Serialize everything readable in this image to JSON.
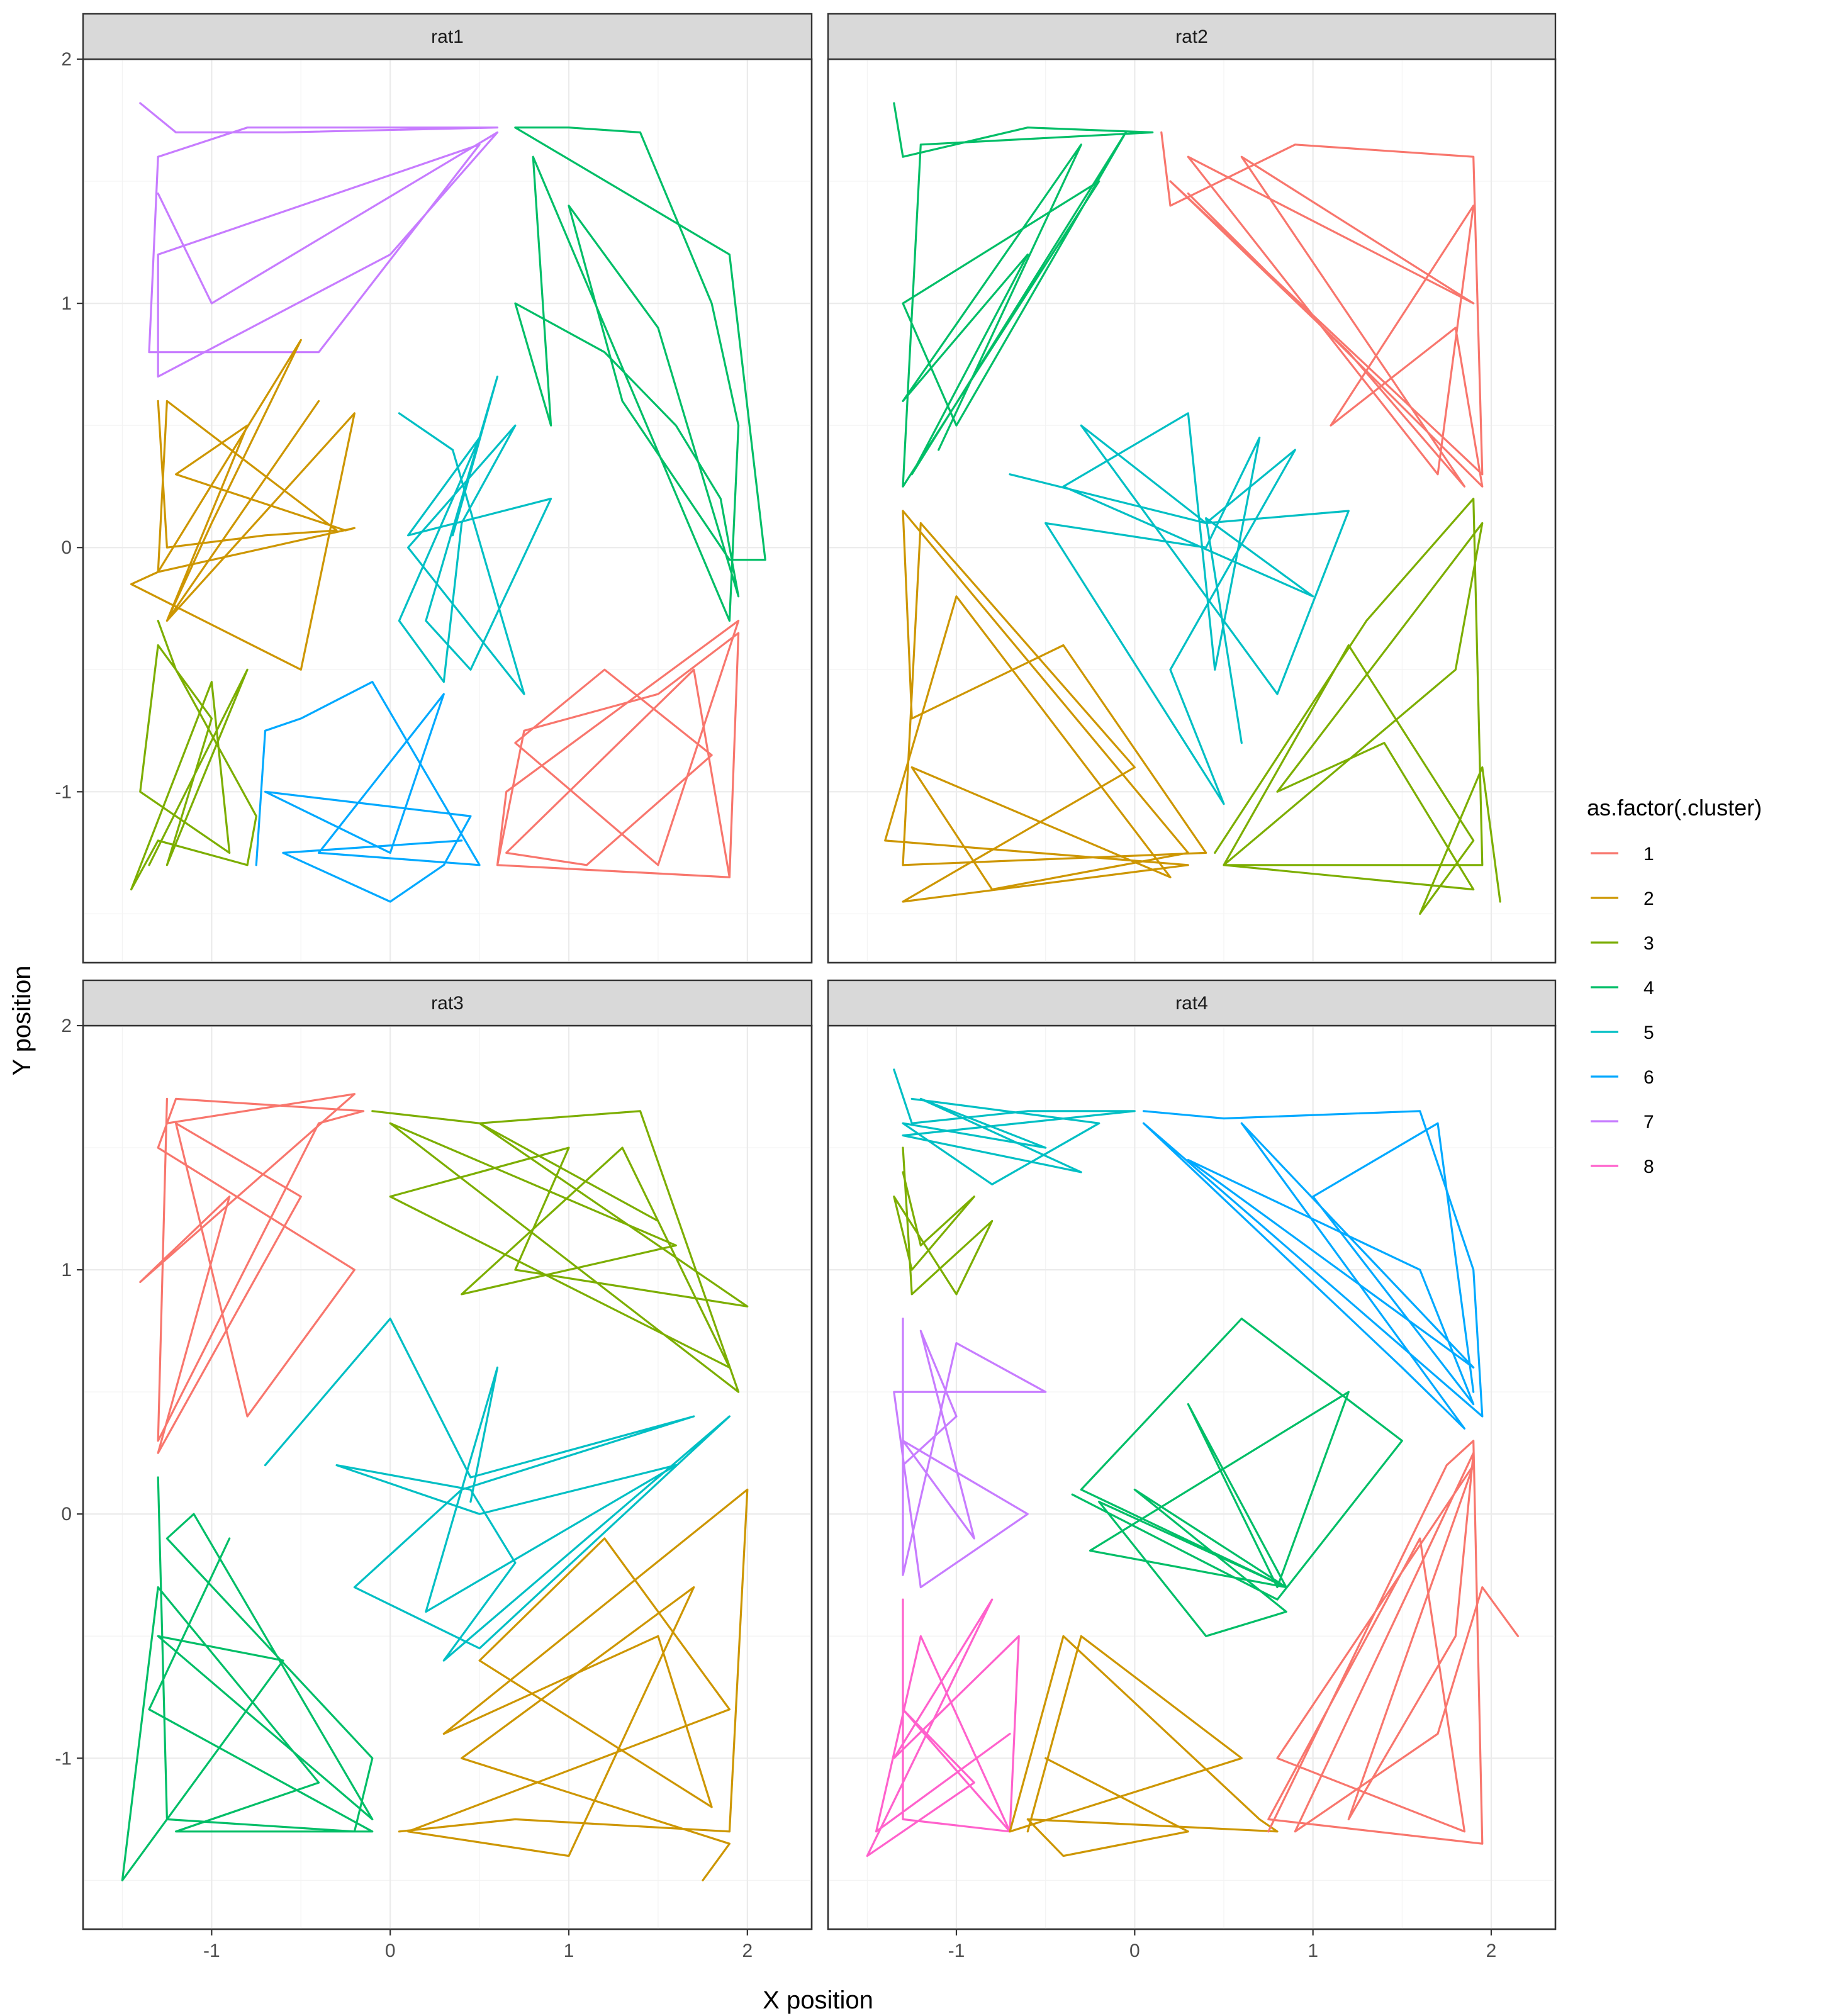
{
  "chart_data": {
    "type": "line",
    "title": "",
    "xlabel": "X position",
    "ylabel": "Y position",
    "xlim": [
      -1.72,
      2.36
    ],
    "ylim": [
      -1.7,
      2.0
    ],
    "x_ticks": [
      -1,
      0,
      1,
      2
    ],
    "x_tick_labels": [
      "-1",
      "0",
      "1",
      "2"
    ],
    "y_ticks": [
      -1,
      0,
      1,
      2
    ],
    "y_tick_labels": [
      "-1",
      "0",
      "1",
      "2"
    ],
    "grid": true,
    "legend": {
      "title": "as.factor(.cluster)",
      "position": "right",
      "entries": [
        {
          "label": "1",
          "color": "#F8766D"
        },
        {
          "label": "2",
          "color": "#CD9600"
        },
        {
          "label": "3",
          "color": "#7CAE00"
        },
        {
          "label": "4",
          "color": "#00BE67"
        },
        {
          "label": "5",
          "color": "#00BFC4"
        },
        {
          "label": "6",
          "color": "#00A9FF"
        },
        {
          "label": "7",
          "color": "#C77CFF"
        },
        {
          "label": "8",
          "color": "#FF61CC"
        }
      ]
    },
    "facets": [
      {
        "label": "rat1",
        "series": [
          {
            "cluster": "7",
            "x": [
              -1.4,
              -1.2,
              -0.6,
              0.6,
              -0.8,
              -1.3,
              -1.35,
              -0.4,
              0.5,
              -1.3,
              -1.3,
              0.0,
              0.6,
              -1.0,
              -1.3
            ],
            "y": [
              1.82,
              1.7,
              1.7,
              1.72,
              1.72,
              1.6,
              0.8,
              0.8,
              1.65,
              1.2,
              0.7,
              1.2,
              1.7,
              1.0,
              1.45
            ]
          },
          {
            "cluster": "4",
            "x": [
              0.7,
              1.0,
              1.4,
              1.8,
              1.95,
              1.9,
              0.8,
              0.9,
              0.7,
              1.2,
              1.6,
              1.85,
              1.95,
              1.5,
              1.0,
              1.3,
              1.9,
              2.1,
              1.9,
              0.7
            ],
            "y": [
              1.72,
              1.72,
              1.7,
              1.0,
              0.5,
              -0.3,
              1.6,
              0.5,
              1.0,
              0.8,
              0.5,
              0.2,
              -0.2,
              0.9,
              1.4,
              0.6,
              -0.05,
              -0.05,
              1.2,
              1.72
            ]
          },
          {
            "cluster": "2",
            "x": [
              -1.3,
              -1.25,
              -0.7,
              -0.3,
              -1.25,
              -1.3,
              -0.5,
              -1.0,
              -1.25,
              -0.2,
              -0.5,
              -1.45,
              -1.3,
              -0.2,
              -0.25,
              -1.2,
              -0.8,
              -1.25,
              -0.4
            ],
            "y": [
              0.6,
              0.0,
              0.05,
              0.07,
              0.6,
              -0.1,
              0.85,
              0.1,
              -0.3,
              0.55,
              -0.5,
              -0.15,
              -0.1,
              0.08,
              0.07,
              0.3,
              0.5,
              -0.3,
              0.6
            ]
          },
          {
            "cluster": "5",
            "x": [
              0.05,
              0.35,
              0.75,
              0.1,
              0.7,
              0.4,
              0.3,
              0.05,
              0.5,
              0.1,
              0.9,
              0.45,
              0.2,
              0.6,
              0.35
            ],
            "y": [
              0.55,
              0.4,
              -0.6,
              0.0,
              0.5,
              0.1,
              -0.55,
              -0.3,
              0.45,
              0.05,
              0.2,
              -0.5,
              -0.3,
              0.7,
              0.05
            ]
          },
          {
            "cluster": "1",
            "x": [
              0.6,
              0.75,
              1.5,
              1.95,
              1.9,
              0.6,
              0.65,
              1.95,
              1.5,
              0.7,
              1.2,
              1.8,
              1.1,
              0.65,
              1.7,
              1.9
            ],
            "y": [
              -1.3,
              -0.75,
              -0.6,
              -0.35,
              -1.35,
              -1.3,
              -1.0,
              -0.3,
              -1.3,
              -0.8,
              -0.5,
              -0.85,
              -1.3,
              -1.25,
              -0.5,
              -1.35
            ]
          },
          {
            "cluster": "3",
            "x": [
              -1.3,
              -1.2,
              -0.75,
              -0.8,
              -1.3,
              -1.45,
              -1.0,
              -0.9,
              -1.4,
              -1.3,
              -1.0,
              -1.25,
              -0.8,
              -1.35
            ],
            "y": [
              -0.3,
              -0.5,
              -1.1,
              -1.3,
              -1.2,
              -1.4,
              -0.55,
              -1.25,
              -1.0,
              -0.4,
              -0.7,
              -1.3,
              -0.5,
              -1.3
            ]
          },
          {
            "cluster": "6",
            "x": [
              -0.75,
              -0.7,
              -0.5,
              -0.1,
              0.5,
              -0.4,
              0.3,
              0.0,
              -0.7,
              0.45,
              0.3,
              0.0,
              -0.6,
              0.4
            ],
            "y": [
              -1.3,
              -0.75,
              -0.7,
              -0.55,
              -1.3,
              -1.25,
              -0.6,
              -1.25,
              -1.0,
              -1.1,
              -1.3,
              -1.45,
              -1.25,
              -1.2
            ]
          }
        ]
      },
      {
        "label": "rat2",
        "series": [
          {
            "cluster": "4",
            "x": [
              -1.35,
              -1.3,
              -0.6,
              0.1,
              -1.2,
              -1.3,
              -0.2,
              -1.3,
              -1.0,
              -0.05,
              -1.25,
              -0.6,
              -1.3,
              -0.3,
              -1.1
            ],
            "y": [
              1.82,
              1.6,
              1.72,
              1.7,
              1.65,
              0.25,
              1.5,
              1.0,
              0.5,
              1.7,
              0.3,
              1.2,
              0.6,
              1.65,
              0.4
            ]
          },
          {
            "cluster": "1",
            "x": [
              0.15,
              0.2,
              0.9,
              1.9,
              1.95,
              0.2,
              1.2,
              1.85,
              0.6,
              1.9,
              0.3,
              1.7,
              1.9,
              1.1,
              1.8,
              1.95,
              0.3
            ],
            "y": [
              1.7,
              1.4,
              1.65,
              1.6,
              0.3,
              1.5,
              0.8,
              0.25,
              1.6,
              1.0,
              1.6,
              0.3,
              1.4,
              0.5,
              0.9,
              0.25,
              1.45
            ]
          },
          {
            "cluster": "5",
            "x": [
              -0.7,
              0.4,
              1.2,
              0.8,
              -0.3,
              0.4,
              0.9,
              0.2,
              0.5,
              -0.5,
              0.4,
              0.7,
              0.45,
              0.3,
              -0.4,
              1.0,
              0.4,
              0.6
            ],
            "y": [
              0.3,
              0.1,
              0.15,
              -0.6,
              0.5,
              0.1,
              0.4,
              -0.5,
              -1.05,
              0.1,
              0.0,
              0.45,
              -0.5,
              0.55,
              0.25,
              -0.2,
              0.12,
              -0.8
            ]
          },
          {
            "cluster": "2",
            "x": [
              -1.3,
              -1.25,
              -0.4,
              0.4,
              -1.3,
              -1.2,
              0.0,
              -1.3,
              0.3,
              -1.4,
              -1.0,
              0.2,
              -1.25,
              -0.8,
              0.3,
              -1.3
            ],
            "y": [
              0.15,
              -0.7,
              -0.4,
              -1.25,
              -1.3,
              0.1,
              -0.9,
              -1.45,
              -1.3,
              -1.2,
              -0.2,
              -1.35,
              -0.9,
              -1.4,
              -1.25,
              0.15
            ]
          },
          {
            "cluster": "3",
            "x": [
              0.45,
              1.3,
              1.9,
              1.95,
              0.5,
              1.8,
              1.95,
              0.8,
              1.4,
              1.9,
              0.5,
              1.2,
              1.9,
              1.6,
              1.95,
              2.05
            ],
            "y": [
              -1.25,
              -0.3,
              0.2,
              -1.3,
              -1.3,
              -0.5,
              0.1,
              -1.0,
              -0.8,
              -1.4,
              -1.3,
              -0.4,
              -1.2,
              -1.5,
              -0.9,
              -1.45
            ]
          }
        ]
      },
      {
        "label": "rat3",
        "series": [
          {
            "cluster": "1",
            "x": [
              -1.25,
              -1.3,
              -0.4,
              -0.15,
              -1.2,
              -1.3,
              -0.2,
              -0.8,
              -1.2,
              -0.5,
              -1.3,
              -0.9,
              -1.4,
              -0.2,
              -1.25
            ],
            "y": [
              1.7,
              0.3,
              1.6,
              1.65,
              1.7,
              1.5,
              1.0,
              0.4,
              1.6,
              1.3,
              0.25,
              1.3,
              0.95,
              1.72,
              1.6
            ]
          },
          {
            "cluster": "3",
            "x": [
              -0.1,
              0.5,
              1.4,
              1.95,
              0.0,
              1.6,
              0.4,
              1.3,
              1.9,
              0.0,
              1.0,
              0.7,
              2.0,
              0.5,
              1.5
            ],
            "y": [
              1.65,
              1.6,
              1.65,
              0.5,
              1.6,
              1.1,
              0.9,
              1.5,
              0.6,
              1.3,
              1.5,
              1.0,
              0.85,
              1.6,
              1.2
            ]
          },
          {
            "cluster": "5",
            "x": [
              -0.7,
              0.0,
              0.45,
              1.7,
              0.4,
              -0.2,
              0.5,
              1.9,
              0.3,
              0.7,
              0.45,
              -0.3,
              0.5,
              1.6,
              0.2,
              0.6,
              0.45
            ],
            "y": [
              0.2,
              0.8,
              0.15,
              0.4,
              0.1,
              -0.3,
              -0.55,
              0.4,
              -0.6,
              -0.2,
              0.1,
              0.2,
              0.0,
              0.2,
              -0.4,
              0.6,
              0.05
            ]
          },
          {
            "cluster": "4",
            "x": [
              -1.3,
              -1.25,
              -0.2,
              -0.1,
              -1.25,
              -1.1,
              -0.1,
              -1.3,
              -0.6,
              -1.5,
              -1.3,
              -0.4,
              -1.2,
              -0.1,
              -1.35,
              -0.9
            ],
            "y": [
              0.15,
              -1.25,
              -1.3,
              -1.0,
              -0.1,
              0.0,
              -1.25,
              -0.5,
              -0.6,
              -1.5,
              -0.3,
              -1.1,
              -1.3,
              -1.3,
              -0.8,
              -0.1
            ]
          },
          {
            "cluster": "2",
            "x": [
              0.05,
              0.7,
              1.9,
              2.0,
              0.3,
              1.5,
              1.8,
              0.5,
              1.2,
              1.9,
              0.1,
              1.0,
              1.7,
              0.4,
              1.9,
              1.75
            ],
            "y": [
              -1.3,
              -1.25,
              -1.3,
              0.1,
              -0.9,
              -0.5,
              -1.2,
              -0.6,
              -0.1,
              -0.8,
              -1.3,
              -1.4,
              -0.3,
              -1.0,
              -1.35,
              -1.5
            ]
          }
        ]
      },
      {
        "label": "rat4",
        "series": [
          {
            "cluster": "5",
            "x": [
              -1.35,
              -1.25,
              -0.6,
              0.0,
              -1.3,
              -0.3,
              -1.2,
              -0.5,
              -1.3,
              -0.8,
              -0.2,
              -1.25
            ],
            "y": [
              1.82,
              1.6,
              1.65,
              1.65,
              1.55,
              1.4,
              1.7,
              1.5,
              1.6,
              1.35,
              1.6,
              1.7
            ]
          },
          {
            "cluster": "6",
            "x": [
              0.05,
              0.5,
              1.6,
              1.9,
              1.95,
              0.05,
              1.5,
              1.85,
              0.6,
              1.9,
              0.3,
              1.6,
              1.9,
              1.0,
              1.7,
              1.9
            ],
            "y": [
              1.65,
              1.62,
              1.65,
              1.0,
              0.4,
              1.6,
              0.6,
              0.35,
              1.6,
              0.6,
              1.45,
              1.0,
              0.45,
              1.3,
              1.6,
              0.5
            ]
          },
          {
            "cluster": "3",
            "x": [
              -1.3,
              -1.25,
              -0.8,
              -1.0,
              -1.35,
              -1.25,
              -0.9,
              -1.2,
              -1.3
            ],
            "y": [
              1.5,
              0.9,
              1.2,
              0.9,
              1.3,
              1.0,
              1.3,
              1.1,
              1.4
            ]
          },
          {
            "cluster": "7",
            "x": [
              -1.3,
              -1.3,
              -1.0,
              -0.5,
              -1.35,
              -1.2,
              -0.6,
              -1.3,
              -0.9,
              -1.2,
              -1.0,
              -1.3
            ],
            "y": [
              0.8,
              -0.25,
              0.7,
              0.5,
              0.5,
              -0.3,
              0.0,
              0.3,
              -0.1,
              0.75,
              0.4,
              0.2
            ]
          },
          {
            "cluster": "4",
            "x": [
              -0.35,
              0.8,
              1.5,
              0.6,
              -0.3,
              0.85,
              0.3,
              0.8,
              1.2,
              -0.25,
              0.85,
              0.0,
              0.85,
              0.4,
              -0.2,
              0.85
            ],
            "y": [
              0.08,
              -0.35,
              0.3,
              0.8,
              0.1,
              -0.3,
              0.45,
              -0.3,
              0.5,
              -0.15,
              -0.3,
              0.1,
              -0.4,
              -0.5,
              0.05,
              -0.3
            ]
          },
          {
            "cluster": "8",
            "x": [
              -1.3,
              -1.3,
              -0.7,
              -0.65,
              -1.35,
              -0.8,
              -1.5,
              -0.9,
              -1.3,
              -0.7,
              -1.2,
              -1.45,
              -0.7
            ],
            "y": [
              -0.35,
              -1.25,
              -1.3,
              -0.5,
              -1.0,
              -0.35,
              -1.4,
              -1.1,
              -0.8,
              -1.3,
              -0.5,
              -1.3,
              -0.9
            ]
          },
          {
            "cluster": "2",
            "x": [
              -0.6,
              -0.3,
              0.6,
              -0.7,
              -0.4,
              0.7,
              0.8,
              -0.6,
              -0.4,
              0.3,
              -0.5
            ],
            "y": [
              -1.3,
              -0.5,
              -1.0,
              -1.3,
              -0.5,
              -1.25,
              -1.3,
              -1.25,
              -1.4,
              -1.3,
              -1.0
            ]
          },
          {
            "cluster": "1",
            "x": [
              0.75,
              1.75,
              1.9,
              1.95,
              0.75,
              1.6,
              1.85,
              0.8,
              1.9,
              1.2,
              1.8,
              1.9,
              0.9,
              1.7,
              1.95,
              2.15
            ],
            "y": [
              -1.3,
              0.2,
              0.3,
              -1.35,
              -1.25,
              -0.1,
              -1.3,
              -1.0,
              0.2,
              -1.25,
              -0.5,
              0.25,
              -1.3,
              -0.9,
              -0.3,
              -0.5
            ]
          }
        ]
      }
    ]
  }
}
